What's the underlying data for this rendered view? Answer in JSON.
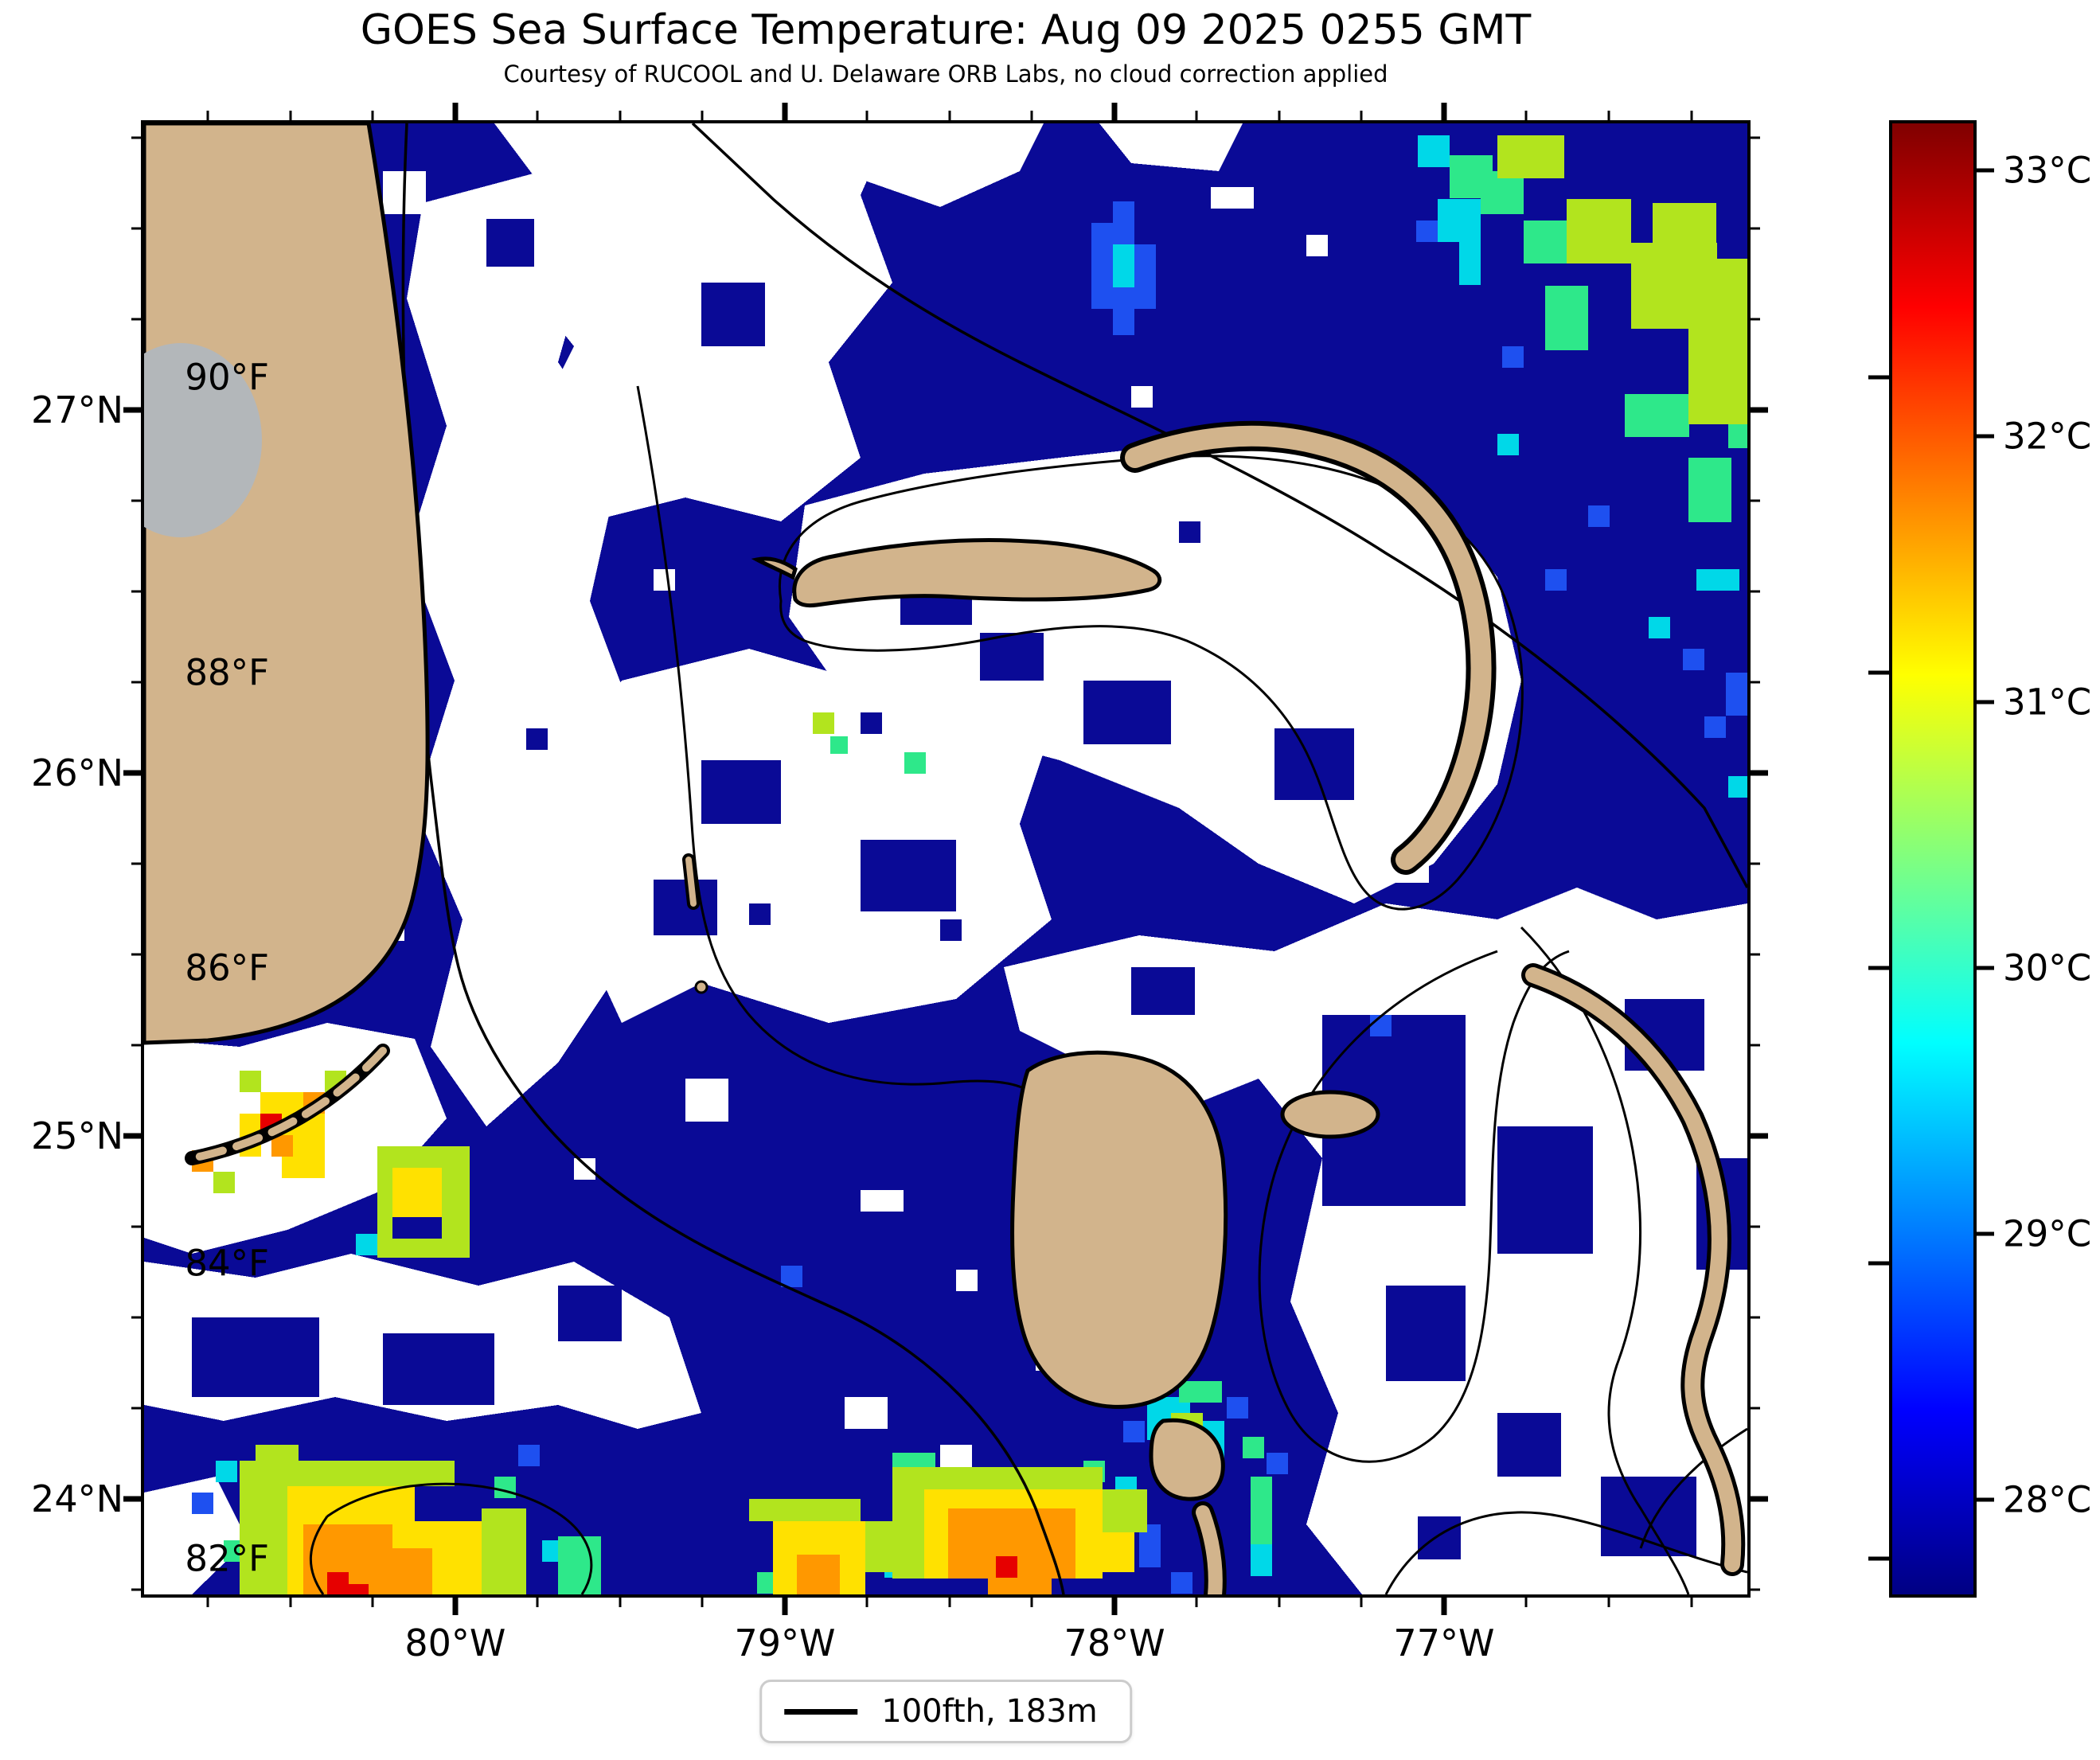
{
  "title": "GOES Sea Surface Temperature: Aug 09 2025 0255 GMT",
  "subtitle": "Courtesy of RUCOOL and U. Delaware ORB Labs, no cloud correction applied",
  "axes": {
    "x_ticks": [
      {
        "label": "80°W",
        "pos_pct": 19.41
      },
      {
        "label": "79°W",
        "pos_pct": 39.97
      },
      {
        "label": "78°W",
        "pos_pct": 60.53
      },
      {
        "label": "77°W",
        "pos_pct": 81.08
      }
    ],
    "y_ticks": [
      {
        "label": "27°N",
        "pos_pct": 19.48
      },
      {
        "label": "26°N",
        "pos_pct": 44.16
      },
      {
        "label": "25°N",
        "pos_pct": 68.83
      },
      {
        "label": "24°N",
        "pos_pct": 93.51
      }
    ]
  },
  "colorbar": {
    "celsius_ticks": [
      {
        "label": "33°C",
        "pos_pct": 3.19
      },
      {
        "label": "32°C",
        "pos_pct": 21.27
      },
      {
        "label": "31°C",
        "pos_pct": 39.34
      },
      {
        "label": "30°C",
        "pos_pct": 57.41
      },
      {
        "label": "29°C",
        "pos_pct": 75.49
      },
      {
        "label": "28°C",
        "pos_pct": 93.56
      }
    ],
    "fahrenheit_ticks": [
      {
        "label": "90°F",
        "pos_pct": 17.26
      },
      {
        "label": "88°F",
        "pos_pct": 37.34
      },
      {
        "label": "86°F",
        "pos_pct": 57.41
      },
      {
        "label": "84°F",
        "pos_pct": 77.49
      },
      {
        "label": "82°F",
        "pos_pct": 97.56
      }
    ],
    "colormap": "jet",
    "range_c": [
      27.6,
      33.2
    ]
  },
  "legend": {
    "label": "100fth, 183m"
  },
  "colors": {
    "ocean_cold": "#0a0a96",
    "cloud_no_data": "#ffffff",
    "land": "#d2b48c",
    "lake": "#b3b7ba",
    "contour": "#000000",
    "warm_yellow": "#ffe100",
    "warm_orange": "#ff9800",
    "warm_red": "#e60000",
    "warm_yellowgreen": "#b2e41e",
    "warm_green": "#2ee88a",
    "warm_cyan": "#00d8e8",
    "warm_blue": "#1e50f0"
  },
  "chart_data": {
    "type": "heatmap",
    "title": "GOES Sea Surface Temperature: Aug 09 2025 0255 GMT",
    "subtitle": "Courtesy of RUCOOL and U. Delaware ORB Labs, no cloud correction applied",
    "x_axis": {
      "tick_labels": [
        "80°W",
        "79°W",
        "78°W",
        "77°W"
      ],
      "range_deg_west": [
        80.94,
        76.08
      ],
      "minor_tick_step_deg": 0.25
    },
    "y_axis": {
      "tick_labels": [
        "27°N",
        "26°N",
        "25°N",
        "24°N"
      ],
      "range_deg_north": [
        23.74,
        27.79
      ],
      "minor_tick_step_deg": 0.25
    },
    "colorbar": {
      "colormap": "jet",
      "range_c": [
        27.6,
        33.2
      ],
      "ticks_c": [
        28,
        29,
        30,
        31,
        32,
        33
      ],
      "ticks_f": [
        82,
        84,
        86,
        88,
        90
      ],
      "position": "right"
    },
    "legend_entries": [
      {
        "line": "black solid",
        "label": "100fth, 183m"
      }
    ],
    "regions": [
      {
        "area": "open ocean background (Straits of Florida, NW Bahamas)",
        "approx_sst_c": 28.0,
        "rendered": "dark navy"
      },
      {
        "area": "northeast warm filament (upper right)",
        "approx_sst_c_range": [
          29.0,
          31.5
        ],
        "rendered": "cyan-green-yellow patch"
      },
      {
        "area": "warm spot near 25°N 80.2°W (south of Florida)",
        "approx_sst_c_range": [
          31.0,
          32.5
        ],
        "rendered": "yellow-orange with red pixel"
      },
      {
        "area": "southern warm band along bottom edge",
        "approx_sst_c_range": [
          30.5,
          32.5
        ],
        "rendered": "yellow-orange cores with green fringe"
      },
      {
        "area": "cloud-masked / no retrieval",
        "approx_sst_c": null,
        "rendered": "white"
      },
      {
        "area": "land (Florida, Bahama islands)",
        "approx_sst_c": null,
        "rendered": "tan with black coastline"
      },
      {
        "area": "Lake Okeechobee",
        "approx_sst_c": null,
        "rendered": "gray"
      }
    ]
  }
}
